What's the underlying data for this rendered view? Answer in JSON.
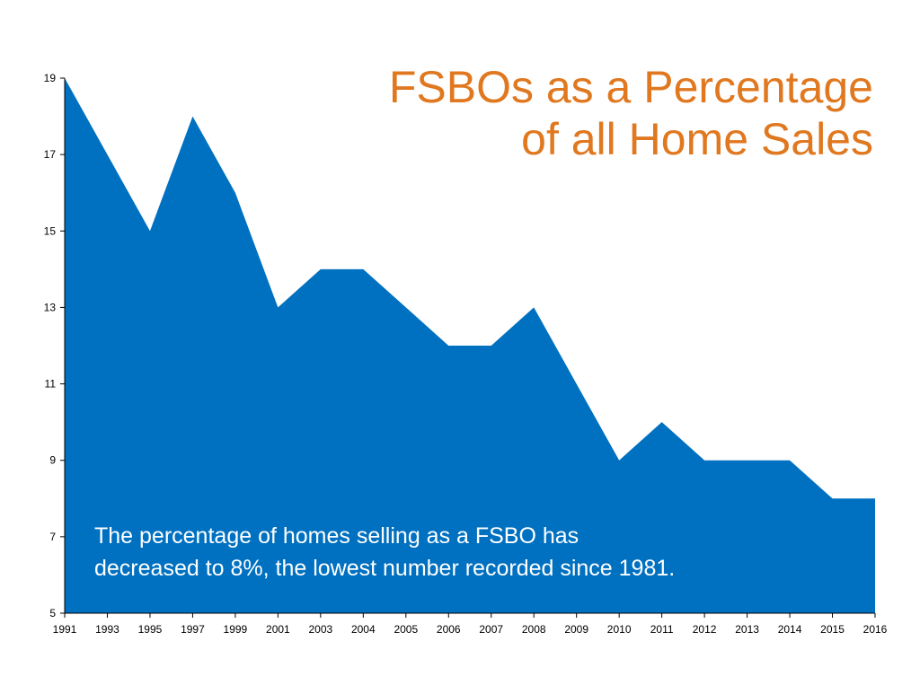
{
  "chart_data": {
    "type": "area",
    "title_lines": [
      "FSBOs as a Percentage",
      "of all Home Sales"
    ],
    "annotation_lines": [
      "The percentage of homes selling as a FSBO has",
      "decreased to 8%, the lowest number recorded since 1981."
    ],
    "categories": [
      "1991",
      "1993",
      "1995",
      "1997",
      "1999",
      "2001",
      "2003",
      "2004",
      "2005",
      "2006",
      "2007",
      "2008",
      "2009",
      "2010",
      "2011",
      "2012",
      "2013",
      "2014",
      "2015",
      "2016"
    ],
    "series": [
      {
        "values": [
          19,
          17,
          15,
          18,
          16,
          13,
          14,
          14,
          13,
          12,
          12,
          13,
          11,
          9,
          10,
          9,
          9,
          9,
          8,
          8
        ]
      }
    ],
    "y_ticks": [
      5,
      7,
      9,
      11,
      13,
      15,
      17,
      19
    ],
    "ylim": [
      5,
      19
    ],
    "xlabel": "",
    "ylabel": "",
    "grid": false,
    "legend": "none",
    "colors": {
      "area": "#0070C0",
      "title": "#E07820",
      "annotation": "#FFFFFF",
      "axis": "#000000"
    }
  }
}
